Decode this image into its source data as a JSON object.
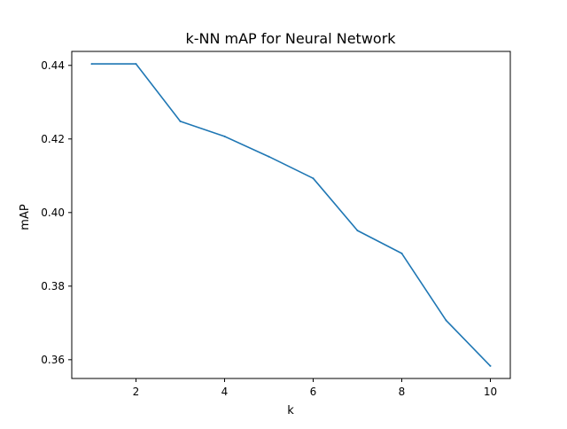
{
  "chart_data": {
    "type": "line",
    "title": "k-NN mAP for Neural Network",
    "xlabel": "k",
    "ylabel": "mAP",
    "x": [
      1,
      2,
      3,
      4,
      5,
      6,
      7,
      8,
      9,
      10
    ],
    "series": [
      {
        "values": [
          0.4404,
          0.4404,
          0.4248,
          0.4207,
          0.4152,
          0.4093,
          0.3951,
          0.3889,
          0.3707,
          0.3583
        ],
        "color": "#1f77b4"
      }
    ],
    "xlim": [
      0.55,
      10.45
    ],
    "ylim": [
      0.3549,
      0.4438
    ],
    "x_ticks": [
      2,
      4,
      6,
      8,
      10
    ],
    "y_ticks": [
      0.36,
      0.38,
      0.4,
      0.42,
      0.44
    ],
    "x_tick_labels": [
      "2",
      "4",
      "6",
      "8",
      "10"
    ],
    "y_tick_labels": [
      "0.36",
      "0.38",
      "0.40",
      "0.42",
      "0.44"
    ],
    "grid": false,
    "legend": "none"
  }
}
